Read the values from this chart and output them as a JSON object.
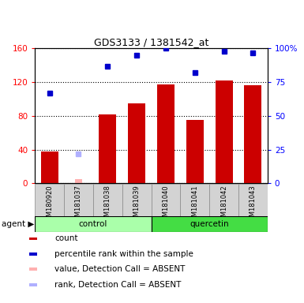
{
  "title": "GDS3133 / 1381542_at",
  "samples": [
    "GSM180920",
    "GSM181037",
    "GSM181038",
    "GSM181039",
    "GSM181040",
    "GSM181041",
    "GSM181042",
    "GSM181043"
  ],
  "bar_values": [
    38,
    null,
    82,
    95,
    117,
    75,
    122,
    116
  ],
  "bar_absent_values": [
    null,
    5,
    null,
    null,
    null,
    null,
    null,
    null
  ],
  "blue_square_values": [
    67,
    null,
    87,
    95,
    100,
    82,
    98,
    97
  ],
  "blue_absent_values": [
    null,
    22,
    null,
    null,
    null,
    null,
    null,
    null
  ],
  "bar_color": "#cc0000",
  "bar_absent_color": "#ffb0b0",
  "blue_color": "#0000cc",
  "blue_absent_color": "#b0b0ff",
  "left_ylim": [
    0,
    160
  ],
  "right_ylim": [
    0,
    100
  ],
  "left_yticks": [
    0,
    40,
    80,
    120,
    160
  ],
  "left_yticklabels": [
    "0",
    "40",
    "80",
    "120",
    "160"
  ],
  "right_yticks": [
    0,
    25,
    50,
    75,
    100
  ],
  "right_yticklabels": [
    "0",
    "25",
    "50",
    "75",
    "100%"
  ],
  "control_color": "#aaffaa",
  "quercetin_color": "#44dd44",
  "legend_items": [
    {
      "label": "count",
      "color": "#cc0000"
    },
    {
      "label": "percentile rank within the sample",
      "color": "#0000cc"
    },
    {
      "label": "value, Detection Call = ABSENT",
      "color": "#ffb0b0"
    },
    {
      "label": "rank, Detection Call = ABSENT",
      "color": "#b0b0ff"
    }
  ]
}
